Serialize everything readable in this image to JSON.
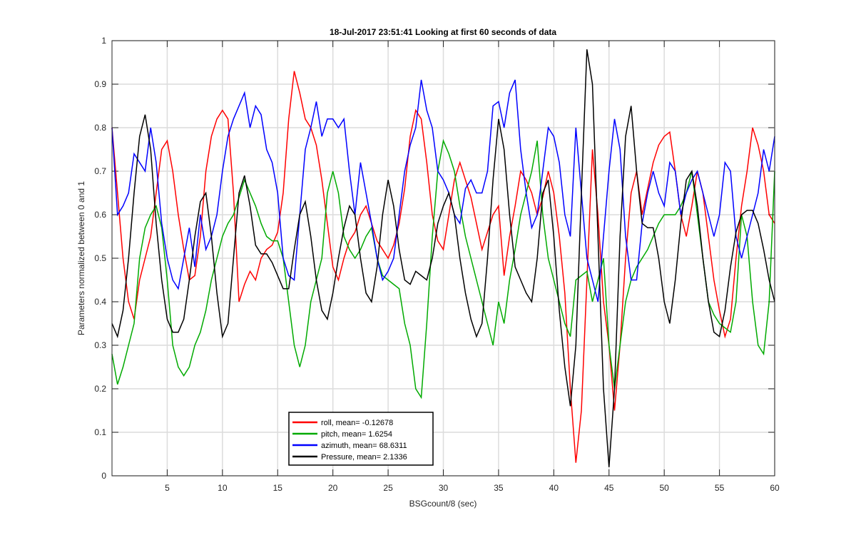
{
  "chart_data": {
    "type": "line",
    "title": "18-Jul-2017 23:51:41 Looking at first 60 seconds of data",
    "xlabel": "BSGcount/8 (sec)",
    "ylabel": "Parameters normalized between 0 and 1",
    "xlim": [
      0,
      60
    ],
    "ylim": [
      0,
      1
    ],
    "xticks": [
      5,
      10,
      15,
      20,
      25,
      30,
      35,
      40,
      45,
      50,
      55,
      60
    ],
    "yticks": [
      0,
      0.1,
      0.2,
      0.3,
      0.4,
      0.5,
      0.6,
      0.7,
      0.8,
      0.9,
      1
    ],
    "grid": true,
    "legend": "lower left",
    "x": [
      0,
      0.5,
      1,
      1.5,
      2,
      2.5,
      3,
      3.5,
      4,
      4.5,
      5,
      5.5,
      6,
      6.5,
      7,
      7.5,
      8,
      8.5,
      9,
      9.5,
      10,
      10.5,
      11,
      11.5,
      12,
      12.5,
      13,
      13.5,
      14,
      14.5,
      15,
      15.5,
      16,
      16.5,
      17,
      17.5,
      18,
      18.5,
      19,
      19.5,
      20,
      20.5,
      21,
      21.5,
      22,
      22.5,
      23,
      23.5,
      24,
      24.5,
      25,
      25.5,
      26,
      26.5,
      27,
      27.5,
      28,
      28.5,
      29,
      29.5,
      30,
      30.5,
      31,
      31.5,
      32,
      32.5,
      33,
      33.5,
      34,
      34.5,
      35,
      35.5,
      36,
      36.5,
      37,
      37.5,
      38,
      38.5,
      39,
      39.5,
      40,
      40.5,
      41,
      41.5,
      42,
      42.5,
      43,
      43.5,
      44,
      44.5,
      45,
      45.5,
      46,
      46.5,
      47,
      47.5,
      48,
      48.5,
      49,
      49.5,
      50,
      50.5,
      51,
      51.5,
      52,
      52.5,
      53,
      53.5,
      54,
      54.5,
      55,
      55.5,
      56,
      56.5,
      57,
      57.5,
      58,
      58.5,
      59,
      59.5,
      60
    ],
    "series": [
      {
        "name": "roll, mean= -0.12678",
        "color": "#ff0000",
        "values": [
          0.8,
          0.65,
          0.5,
          0.4,
          0.36,
          0.45,
          0.5,
          0.55,
          0.65,
          0.75,
          0.77,
          0.7,
          0.6,
          0.52,
          0.45,
          0.46,
          0.55,
          0.7,
          0.78,
          0.82,
          0.84,
          0.82,
          0.65,
          0.4,
          0.44,
          0.47,
          0.45,
          0.5,
          0.52,
          0.53,
          0.56,
          0.65,
          0.82,
          0.93,
          0.88,
          0.82,
          0.8,
          0.76,
          0.68,
          0.58,
          0.48,
          0.45,
          0.5,
          0.54,
          0.56,
          0.6,
          0.62,
          0.58,
          0.54,
          0.52,
          0.5,
          0.53,
          0.58,
          0.66,
          0.78,
          0.84,
          0.82,
          0.72,
          0.6,
          0.54,
          0.52,
          0.6,
          0.68,
          0.72,
          0.68,
          0.64,
          0.58,
          0.52,
          0.56,
          0.6,
          0.62,
          0.46,
          0.55,
          0.62,
          0.7,
          0.68,
          0.65,
          0.6,
          0.64,
          0.7,
          0.65,
          0.55,
          0.42,
          0.2,
          0.03,
          0.15,
          0.45,
          0.75,
          0.6,
          0.4,
          0.3,
          0.15,
          0.3,
          0.5,
          0.65,
          0.7,
          0.6,
          0.66,
          0.72,
          0.76,
          0.78,
          0.79,
          0.7,
          0.6,
          0.55,
          0.62,
          0.7,
          0.65,
          0.55,
          0.45,
          0.38,
          0.32,
          0.36,
          0.5,
          0.62,
          0.7,
          0.8,
          0.76,
          0.7,
          0.6,
          0.58
        ]
      },
      {
        "name": "pitch, mean= 1.6254",
        "color": "#00aa00",
        "values": [
          0.28,
          0.21,
          0.25,
          0.3,
          0.35,
          0.5,
          0.57,
          0.6,
          0.62,
          0.57,
          0.45,
          0.3,
          0.25,
          0.23,
          0.25,
          0.3,
          0.33,
          0.38,
          0.45,
          0.5,
          0.55,
          0.58,
          0.6,
          0.64,
          0.68,
          0.65,
          0.62,
          0.58,
          0.55,
          0.54,
          0.54,
          0.5,
          0.4,
          0.3,
          0.25,
          0.3,
          0.4,
          0.45,
          0.5,
          0.65,
          0.7,
          0.65,
          0.55,
          0.52,
          0.5,
          0.52,
          0.55,
          0.57,
          0.5,
          0.46,
          0.45,
          0.44,
          0.43,
          0.35,
          0.3,
          0.2,
          0.18,
          0.35,
          0.55,
          0.7,
          0.77,
          0.74,
          0.7,
          0.62,
          0.55,
          0.5,
          0.45,
          0.4,
          0.35,
          0.3,
          0.4,
          0.35,
          0.45,
          0.52,
          0.6,
          0.65,
          0.7,
          0.77,
          0.6,
          0.5,
          0.45,
          0.4,
          0.35,
          0.32,
          0.45,
          0.46,
          0.47,
          0.4,
          0.45,
          0.5,
          0.3,
          0.2,
          0.3,
          0.4,
          0.45,
          0.48,
          0.5,
          0.52,
          0.55,
          0.58,
          0.6,
          0.6,
          0.6,
          0.62,
          0.65,
          0.7,
          0.6,
          0.5,
          0.4,
          0.37,
          0.35,
          0.34,
          0.33,
          0.4,
          0.6,
          0.55,
          0.4,
          0.3,
          0.28,
          0.4,
          0.7
        ]
      },
      {
        "name": "azimuth, mean= 68.6311",
        "color": "#0000ff",
        "values": [
          0.8,
          0.6,
          0.62,
          0.65,
          0.74,
          0.72,
          0.7,
          0.8,
          0.72,
          0.58,
          0.5,
          0.45,
          0.43,
          0.5,
          0.57,
          0.48,
          0.6,
          0.52,
          0.55,
          0.6,
          0.7,
          0.78,
          0.82,
          0.85,
          0.88,
          0.8,
          0.85,
          0.83,
          0.75,
          0.72,
          0.65,
          0.5,
          0.46,
          0.45,
          0.6,
          0.75,
          0.8,
          0.86,
          0.78,
          0.82,
          0.82,
          0.8,
          0.82,
          0.7,
          0.6,
          0.72,
          0.65,
          0.58,
          0.5,
          0.45,
          0.47,
          0.5,
          0.6,
          0.7,
          0.76,
          0.8,
          0.91,
          0.84,
          0.8,
          0.7,
          0.68,
          0.65,
          0.6,
          0.58,
          0.66,
          0.68,
          0.65,
          0.65,
          0.7,
          0.85,
          0.86,
          0.8,
          0.88,
          0.91,
          0.75,
          0.65,
          0.57,
          0.6,
          0.7,
          0.8,
          0.78,
          0.72,
          0.6,
          0.55,
          0.8,
          0.65,
          0.5,
          0.45,
          0.4,
          0.55,
          0.7,
          0.82,
          0.75,
          0.55,
          0.45,
          0.45,
          0.58,
          0.65,
          0.7,
          0.65,
          0.62,
          0.72,
          0.7,
          0.6,
          0.65,
          0.68,
          0.7,
          0.65,
          0.6,
          0.55,
          0.6,
          0.72,
          0.7,
          0.55,
          0.5,
          0.55,
          0.6,
          0.65,
          0.75,
          0.7,
          0.78
        ]
      },
      {
        "name": "Pressure, mean= 2.1336",
        "color": "#000000",
        "values": [
          0.35,
          0.32,
          0.38,
          0.5,
          0.65,
          0.78,
          0.83,
          0.75,
          0.58,
          0.45,
          0.36,
          0.33,
          0.33,
          0.36,
          0.45,
          0.55,
          0.63,
          0.65,
          0.55,
          0.42,
          0.32,
          0.35,
          0.5,
          0.65,
          0.69,
          0.62,
          0.53,
          0.51,
          0.51,
          0.49,
          0.46,
          0.43,
          0.43,
          0.52,
          0.6,
          0.63,
          0.55,
          0.45,
          0.38,
          0.36,
          0.42,
          0.5,
          0.57,
          0.62,
          0.6,
          0.5,
          0.42,
          0.4,
          0.48,
          0.6,
          0.68,
          0.62,
          0.52,
          0.45,
          0.44,
          0.47,
          0.46,
          0.45,
          0.5,
          0.58,
          0.62,
          0.65,
          0.6,
          0.5,
          0.42,
          0.36,
          0.32,
          0.35,
          0.5,
          0.68,
          0.82,
          0.75,
          0.6,
          0.48,
          0.45,
          0.42,
          0.4,
          0.5,
          0.65,
          0.68,
          0.55,
          0.38,
          0.25,
          0.16,
          0.3,
          0.65,
          0.98,
          0.9,
          0.55,
          0.2,
          0.02,
          0.2,
          0.55,
          0.78,
          0.85,
          0.7,
          0.58,
          0.57,
          0.57,
          0.5,
          0.4,
          0.35,
          0.45,
          0.58,
          0.68,
          0.7,
          0.62,
          0.5,
          0.4,
          0.33,
          0.32,
          0.38,
          0.48,
          0.56,
          0.6,
          0.61,
          0.61,
          0.58,
          0.52,
          0.45,
          0.4
        ]
      }
    ]
  }
}
